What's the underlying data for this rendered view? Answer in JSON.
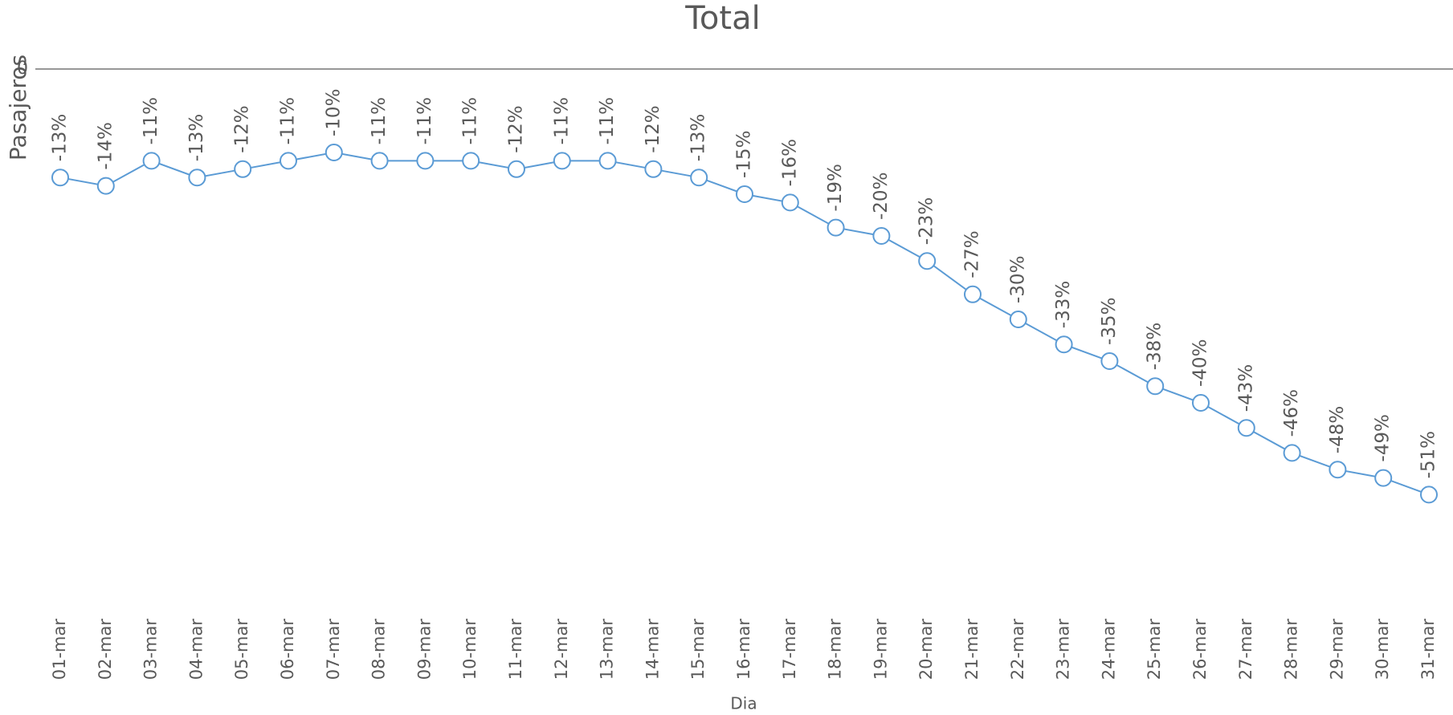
{
  "chart_data": {
    "type": "line",
    "title": "Total",
    "x_label": "Dia",
    "y_label": "Pasajeros",
    "categories": [
      "01-mar",
      "02-mar",
      "03-mar",
      "04-mar",
      "05-mar",
      "06-mar",
      "07-mar",
      "08-mar",
      "09-mar",
      "10-mar",
      "11-mar",
      "12-mar",
      "13-mar",
      "14-mar",
      "15-mar",
      "16-mar",
      "17-mar",
      "18-mar",
      "19-mar",
      "20-mar",
      "21-mar",
      "22-mar",
      "23-mar",
      "24-mar",
      "25-mar",
      "26-mar",
      "27-mar",
      "28-mar",
      "29-mar",
      "30-mar",
      "31-mar"
    ],
    "series": [
      {
        "name": "Total",
        "color": "#5b9bd5",
        "values": [
          -13,
          -14,
          -11,
          -13,
          -12,
          -11,
          -10,
          -11,
          -11,
          -11,
          -12,
          -11,
          -11,
          -12,
          -13,
          -15,
          -16,
          -19,
          -20,
          -23,
          -27,
          -30,
          -33,
          -35,
          -38,
          -40,
          -43,
          -46,
          -48,
          -49,
          -51
        ],
        "value_labels": [
          "-13%",
          "-14%",
          "-11%",
          "-13%",
          "-12%",
          "-11%",
          "-10%",
          "-11%",
          "-11%",
          "-11%",
          "-12%",
          "-11%",
          "-11%",
          "-12%",
          "-13%",
          "-15%",
          "-16%",
          "-19%",
          "-20%",
          "-23%",
          "-27%",
          "-30%",
          "-33%",
          "-35%",
          "-38%",
          "-40%",
          "-43%",
          "-46%",
          "-48%",
          "-49%",
          "-51%"
        ]
      }
    ],
    "ylim": [
      -65,
      0
    ],
    "yticks": [
      0
    ],
    "grid": true
  }
}
